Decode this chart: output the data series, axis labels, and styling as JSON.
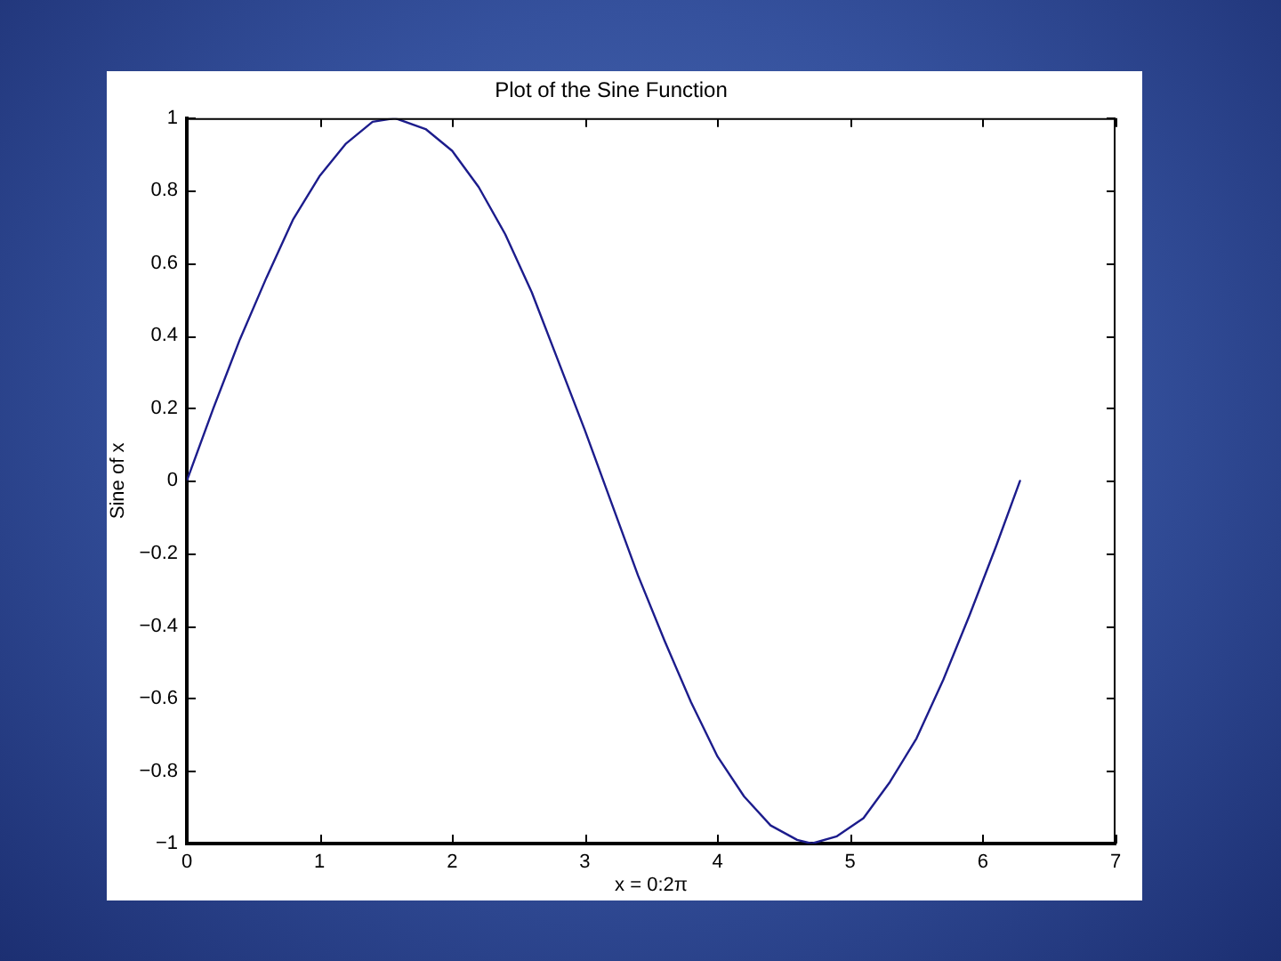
{
  "chart_data": {
    "type": "line",
    "title": "Plot of the Sine Function",
    "xlabel": "x = 0:2π",
    "ylabel": "Sine of x",
    "x": [
      0,
      0.2,
      0.4,
      0.6,
      0.8,
      1.0,
      1.2,
      1.4,
      1.57,
      1.8,
      2.0,
      2.2,
      2.4,
      2.6,
      2.8,
      3.0,
      3.2,
      3.4,
      3.6,
      3.8,
      4.0,
      4.2,
      4.4,
      4.6,
      4.71,
      4.9,
      5.1,
      5.3,
      5.5,
      5.7,
      5.9,
      6.1,
      6.28
    ],
    "series": [
      {
        "color": "#1c1c8c",
        "values": [
          0,
          0.2,
          0.39,
          0.56,
          0.72,
          0.84,
          0.93,
          0.99,
          1,
          0.97,
          0.91,
          0.81,
          0.68,
          0.52,
          0.33,
          0.14,
          -0.06,
          -0.26,
          -0.44,
          -0.61,
          -0.76,
          -0.87,
          -0.95,
          -0.99,
          -1,
          -0.98,
          -0.93,
          -0.83,
          -0.71,
          -0.55,
          -0.37,
          -0.18,
          0
        ]
      }
    ],
    "xlim": [
      0,
      7
    ],
    "xticks": [
      0,
      1,
      2,
      3,
      4,
      5,
      6,
      7
    ],
    "ylim": [
      -1,
      1
    ],
    "yticks": [
      {
        "value": -1,
        "label": "−1"
      },
      {
        "value": -0.8,
        "label": "−0.8"
      },
      {
        "value": -0.6,
        "label": "−0.6"
      },
      {
        "value": -0.4,
        "label": "−0.4"
      },
      {
        "value": -0.2,
        "label": "−0.2"
      },
      0,
      0.2,
      0.4,
      0.6,
      0.8,
      1
    ]
  }
}
